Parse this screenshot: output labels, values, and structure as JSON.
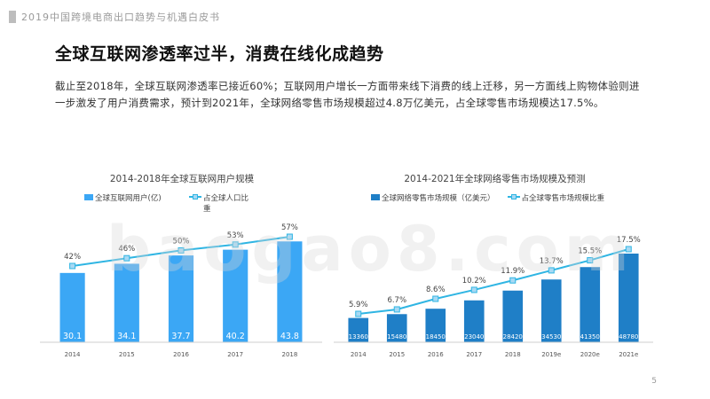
{
  "header": {
    "title": "2019中国跨境电商出口趋势与机遇白皮书"
  },
  "page": {
    "title": "全球互联网渗透率过半，消费在线化成趋势",
    "intro": "截止至2018年，全球互联网渗透率已接近60%；互联网用户增长一方面带来线下消费的线上迁移，另一方面线上购物体验则进一步激发了用户消费需求，预计到2021年，全球网络零售市场规模超过4.8万亿美元，占全球零售市场规模达17.5%。",
    "watermark": "baogao8.com",
    "page_number": "5"
  },
  "colors": {
    "bar_left": "#3ba7f5",
    "bar_right": "#1f7fc7",
    "line": "#2fb5e3",
    "marker_fill": "#a7d9f4"
  },
  "chart_data": [
    {
      "type": "bar",
      "title": "2014-2018年全球互联网用户规模",
      "categories": [
        "2014",
        "2015",
        "2016",
        "2017",
        "2018"
      ],
      "series": [
        {
          "name": "全球互联网用户(亿)",
          "type": "bar",
          "values": [
            30.1,
            34.1,
            37.7,
            40.2,
            43.8
          ],
          "labels": [
            "30.1",
            "34.1",
            "37.7",
            "40.2",
            "43.8"
          ]
        },
        {
          "name": "占全球人口比重",
          "type": "line",
          "values": [
            42,
            46,
            50,
            53,
            57
          ],
          "labels": [
            "42%",
            "46%",
            "50%",
            "53%",
            "57%"
          ]
        }
      ],
      "grid": false
    },
    {
      "type": "bar",
      "title": "2014-2021年全球网络零售市场规模及预测",
      "categories": [
        "2014",
        "2015",
        "2016",
        "2017",
        "2018",
        "2019e",
        "2020e",
        "2021e"
      ],
      "series": [
        {
          "name": "全球网络零售市场规模（亿美元）",
          "type": "bar",
          "values": [
            13360,
            15480,
            18450,
            23040,
            28420,
            34530,
            41350,
            48780
          ],
          "labels": [
            "13360",
            "15480",
            "18450",
            "23040",
            "28420",
            "34530",
            "41350",
            "48780"
          ]
        },
        {
          "name": "占全球零售市场规模比重",
          "type": "line",
          "values": [
            5.9,
            6.7,
            8.6,
            10.2,
            11.9,
            13.7,
            15.5,
            17.5
          ],
          "labels": [
            "5.9%",
            "6.7%",
            "8.6%",
            "10.2%",
            "11.9%",
            "13.7%",
            "15.5%",
            "17.5%"
          ]
        }
      ],
      "grid": false
    }
  ]
}
